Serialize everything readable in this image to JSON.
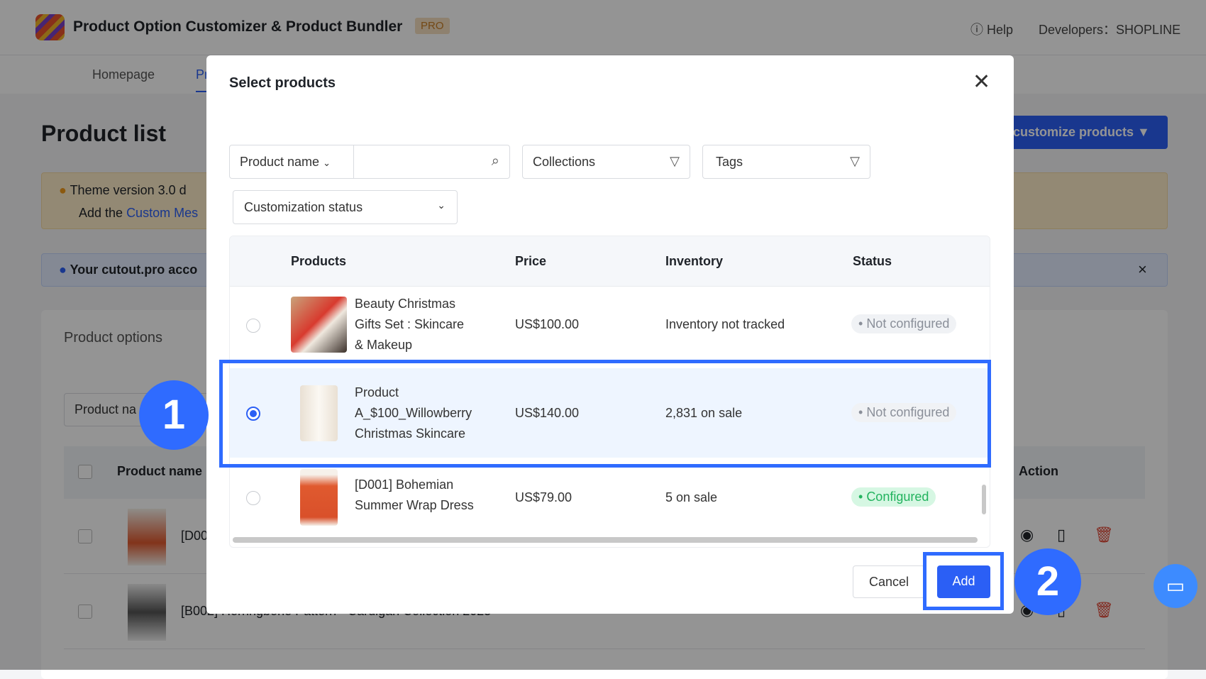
{
  "header": {
    "app_title": "Product Option Customizer & Product Bundler",
    "badge": "PRO",
    "help": "Help",
    "developers": "Developers：SHOPLINE"
  },
  "nav": {
    "tabs": [
      {
        "label": "Homepage"
      },
      {
        "label": "Pr"
      }
    ]
  },
  "page": {
    "title": "Product list",
    "customize_button": "customize products",
    "warning_line1": "Theme version 3.0 d",
    "warning_line2_prefix": "Add the ",
    "warning_link": "Custom Mes",
    "info_text": "Your cutout.pro acco",
    "section_tab": "Product options",
    "search_placeholder": "Product na",
    "table_headers": {
      "name": "Product name",
      "action": "Action"
    },
    "rows": [
      {
        "name": "[D00"
      },
      {
        "name": "[B002] Herringbone Pattern - Cardigan Collection 2025"
      }
    ]
  },
  "modal": {
    "title": "Select products",
    "filters": {
      "field_select": "Product name",
      "search_value": "",
      "collections": "Collections",
      "tags": "Tags",
      "status_select": "Customization status"
    },
    "columns": [
      "Products",
      "Price",
      "Inventory",
      "Status"
    ],
    "rows": [
      {
        "name_lines": [
          "Beauty Christmas",
          "Gifts Set : Skincare",
          "& Makeup"
        ],
        "price": "US$100.00",
        "inventory": "Inventory not tracked",
        "status": "Not configured",
        "selected": false
      },
      {
        "name_lines": [
          "Product",
          "A_$100_Willowberry",
          "Christmas Skincare"
        ],
        "price": "US$140.00",
        "inventory": "2,831 on sale",
        "status": "Not configured",
        "selected": true
      },
      {
        "name_lines": [
          "[D001] Bohemian",
          "Summer Wrap Dress"
        ],
        "price": "US$79.00",
        "inventory": "5 on sale",
        "status": "Configured",
        "selected": false
      }
    ],
    "cancel": "Cancel",
    "add": "Add"
  },
  "annotations": {
    "step1": "1",
    "step2": "2"
  },
  "colors": {
    "accent": "#2b5ff5",
    "configured": "#22b35e",
    "highlight": "#2f6bff"
  }
}
